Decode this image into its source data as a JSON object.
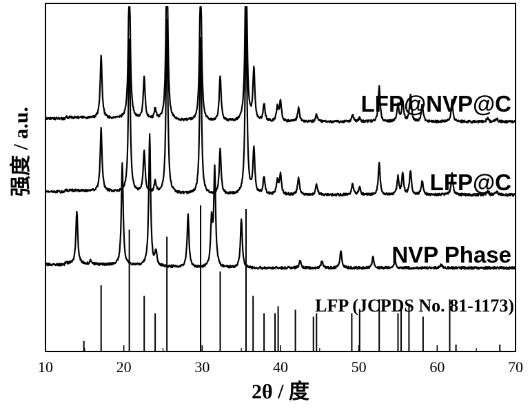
{
  "chart_data": {
    "type": "line",
    "xlabel": "2θ / 度",
    "ylabel": "强度 / a.u.",
    "xlim": [
      10,
      70
    ],
    "xticks": [
      "10",
      "20",
      "30",
      "40",
      "50",
      "60",
      "70"
    ],
    "yticks": [],
    "grid": false,
    "series": [
      {
        "name": "LFP@NVP@C",
        "baseline": 0.66,
        "peaks": [
          [
            17.1,
            0.18
          ],
          [
            20.7,
            0.44
          ],
          [
            22.6,
            0.12
          ],
          [
            24.0,
            0.03
          ],
          [
            25.5,
            0.5
          ],
          [
            29.8,
            0.45
          ],
          [
            32.3,
            0.13
          ],
          [
            35.6,
            0.54
          ],
          [
            36.6,
            0.15
          ],
          [
            37.9,
            0.05
          ],
          [
            39.6,
            0.04
          ],
          [
            40.0,
            0.06
          ],
          [
            42.3,
            0.04
          ],
          [
            44.6,
            0.02
          ],
          [
            49.2,
            0.02
          ],
          [
            50.1,
            0.01
          ],
          [
            52.6,
            0.1
          ],
          [
            55.0,
            0.05
          ],
          [
            55.6,
            0.06
          ],
          [
            56.6,
            0.08
          ],
          [
            58.1,
            0.05
          ],
          [
            61.9,
            0.06
          ],
          [
            66.4,
            0.01
          ],
          [
            67.6,
            0.01
          ]
        ]
      },
      {
        "name": "LFP@C",
        "baseline": 0.45,
        "peaks": [
          [
            17.1,
            0.18
          ],
          [
            20.7,
            0.44
          ],
          [
            22.6,
            0.12
          ],
          [
            24.0,
            0.03
          ],
          [
            25.5,
            0.5
          ],
          [
            29.8,
            0.45
          ],
          [
            32.3,
            0.13
          ],
          [
            35.6,
            0.53
          ],
          [
            36.6,
            0.13
          ],
          [
            37.9,
            0.05
          ],
          [
            39.6,
            0.04
          ],
          [
            40.0,
            0.06
          ],
          [
            42.3,
            0.05
          ],
          [
            44.6,
            0.03
          ],
          [
            49.2,
            0.03
          ],
          [
            50.1,
            0.02
          ],
          [
            52.6,
            0.09
          ],
          [
            55.0,
            0.05
          ],
          [
            55.6,
            0.06
          ],
          [
            56.6,
            0.07
          ],
          [
            58.1,
            0.04
          ],
          [
            61.9,
            0.06
          ],
          [
            66.4,
            0.01
          ],
          [
            67.6,
            0.01
          ]
        ]
      },
      {
        "name": "NVP Phase",
        "baseline": 0.24,
        "peaks": [
          [
            14.0,
            0.15
          ],
          [
            15.8,
            0.01
          ],
          [
            19.8,
            0.29
          ],
          [
            23.3,
            0.38
          ],
          [
            24.1,
            0.04
          ],
          [
            28.2,
            0.15
          ],
          [
            31.2,
            0.13
          ],
          [
            31.6,
            0.28
          ],
          [
            35.0,
            0.14
          ],
          [
            42.5,
            0.02
          ],
          [
            45.3,
            0.02
          ],
          [
            47.7,
            0.05
          ],
          [
            51.8,
            0.03
          ],
          [
            54.6,
            0.02
          ],
          [
            60.5,
            0.01
          ]
        ]
      }
    ],
    "reference": {
      "name": "LFP (JCPDS No. 81-1173)",
      "lines": [
        [
          14.9,
          0.03
        ],
        [
          17.1,
          0.19
        ],
        [
          20.7,
          0.35
        ],
        [
          22.6,
          0.16
        ],
        [
          24.0,
          0.11
        ],
        [
          25.5,
          0.33
        ],
        [
          29.8,
          0.42
        ],
        [
          32.3,
          0.23
        ],
        [
          35.6,
          0.41
        ],
        [
          36.5,
          0.16
        ],
        [
          37.9,
          0.11
        ],
        [
          39.3,
          0.11
        ],
        [
          39.7,
          0.13
        ],
        [
          41.9,
          0.12
        ],
        [
          44.2,
          0.1
        ],
        [
          44.6,
          0.11
        ],
        [
          49.1,
          0.11
        ],
        [
          50.1,
          0.12
        ],
        [
          52.6,
          0.15
        ],
        [
          55.0,
          0.11
        ],
        [
          55.4,
          0.12
        ],
        [
          56.4,
          0.13
        ],
        [
          58.2,
          0.1
        ],
        [
          61.6,
          0.15
        ],
        [
          62.4,
          0.02
        ],
        [
          68.0,
          0.02
        ]
      ]
    }
  }
}
